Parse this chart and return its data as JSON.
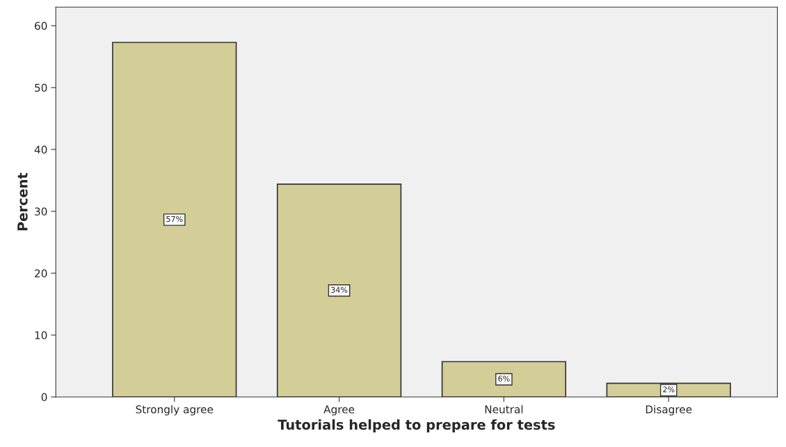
{
  "chart_data": {
    "type": "bar",
    "xlabel": "Tutorials helped to prepare for tests",
    "ylabel": "Percent",
    "categories": [
      "Strongly agree",
      "Agree",
      "Neutral",
      "Disagree"
    ],
    "values": [
      57.3,
      34.4,
      5.7,
      2.2
    ],
    "value_labels": [
      "57%",
      "34%",
      "6%",
      "2%"
    ],
    "color": "#d3ce97",
    "ylim": [
      0,
      63
    ],
    "yticks": [
      0,
      10,
      20,
      30,
      40,
      50,
      60
    ],
    "grid": false,
    "legend": false
  }
}
